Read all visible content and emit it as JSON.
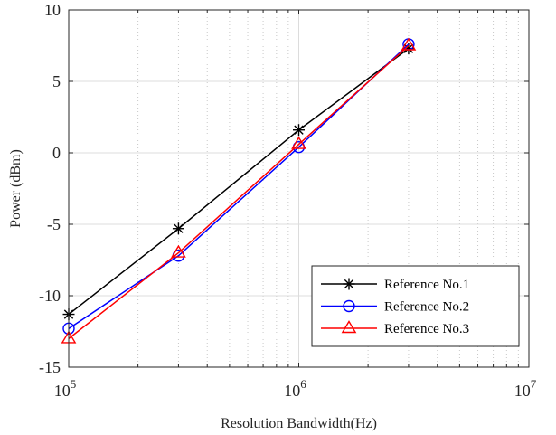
{
  "chart_data": {
    "type": "line",
    "xlabel": "Resolution Bandwidth(Hz)",
    "ylabel": "Power (dBm)",
    "x_scale": "log",
    "xlim": [
      100000,
      10000000
    ],
    "ylim": [
      -15,
      10
    ],
    "grid": true,
    "minor_grid": true,
    "legend_position": "bottom-right",
    "x_ticks": [
      {
        "value": 100000,
        "base": "10",
        "exp": "5"
      },
      {
        "value": 1000000,
        "base": "10",
        "exp": "6"
      },
      {
        "value": 10000000,
        "base": "10",
        "exp": "7"
      }
    ],
    "y_ticks": [
      {
        "value": -15,
        "label": "-15"
      },
      {
        "value": -10,
        "label": "-10"
      },
      {
        "value": -5,
        "label": "-5"
      },
      {
        "value": 0,
        "label": "0"
      },
      {
        "value": 5,
        "label": "5"
      },
      {
        "value": 10,
        "label": "10"
      }
    ],
    "x": [
      100000,
      300000,
      1000000,
      3000000
    ],
    "series": [
      {
        "name": "Reference No.1",
        "color": "#000000",
        "marker": "asterisk",
        "values": [
          -11.3,
          -5.3,
          1.6,
          7.3
        ]
      },
      {
        "name": "Reference No.2",
        "color": "#0000ff",
        "marker": "circle",
        "values": [
          -12.3,
          -7.2,
          0.4,
          7.6
        ]
      },
      {
        "name": "Reference No.3",
        "color": "#ff0000",
        "marker": "triangle",
        "values": [
          -13.0,
          -7.0,
          0.6,
          7.5
        ]
      }
    ]
  }
}
